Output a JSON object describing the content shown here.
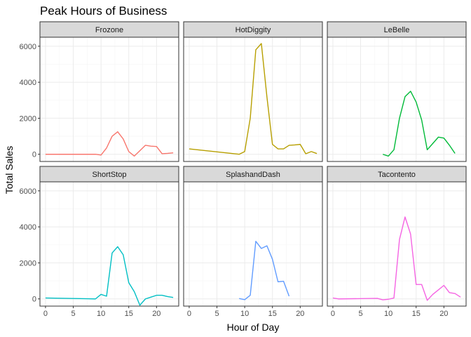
{
  "chart_data": {
    "type": "line",
    "title": "Peak Hours of Business",
    "xlabel": "Hour of Day",
    "ylabel": "Total Sales",
    "xlim": [
      -1,
      24
    ],
    "ylim": [
      -400,
      6500
    ],
    "x_ticks": [
      0,
      5,
      10,
      15,
      20
    ],
    "y_ticks": [
      0,
      2000,
      4000,
      6000
    ],
    "x_tick_labels": [
      "0",
      "5",
      "10",
      "15",
      "20"
    ],
    "y_tick_labels": [
      "0",
      "2000",
      "4000",
      "6000"
    ],
    "grid": true,
    "legend": "none",
    "facets": [
      {
        "name": "Frozone",
        "color": "#F8766D",
        "points": [
          [
            0,
            0
          ],
          [
            9,
            0
          ],
          [
            10,
            -40
          ],
          [
            11,
            350
          ],
          [
            12,
            1000
          ],
          [
            13,
            1250
          ],
          [
            14,
            850
          ],
          [
            15,
            150
          ],
          [
            16,
            -100
          ],
          [
            17,
            200
          ],
          [
            18,
            500
          ],
          [
            19,
            450
          ],
          [
            20,
            430
          ],
          [
            21,
            30
          ],
          [
            22,
            50
          ],
          [
            23,
            80
          ]
        ]
      },
      {
        "name": "HotDiggity",
        "color": "#B79F00",
        "points": [
          [
            0,
            300
          ],
          [
            9,
            0
          ],
          [
            10,
            150
          ],
          [
            11,
            2000
          ],
          [
            12,
            5800
          ],
          [
            13,
            6150
          ],
          [
            14,
            3200
          ],
          [
            15,
            550
          ],
          [
            16,
            300
          ],
          [
            17,
            300
          ],
          [
            18,
            500
          ],
          [
            19,
            520
          ],
          [
            20,
            550
          ],
          [
            21,
            30
          ],
          [
            22,
            150
          ],
          [
            23,
            40
          ]
        ]
      },
      {
        "name": "LeBelle",
        "color": "#00BA38",
        "points": [
          [
            9,
            0
          ],
          [
            10,
            -100
          ],
          [
            11,
            250
          ],
          [
            12,
            2000
          ],
          [
            13,
            3200
          ],
          [
            14,
            3500
          ],
          [
            15,
            2900
          ],
          [
            16,
            1900
          ],
          [
            17,
            250
          ],
          [
            18,
            600
          ],
          [
            19,
            950
          ],
          [
            20,
            900
          ],
          [
            21,
            500
          ],
          [
            22,
            50
          ]
        ]
      },
      {
        "name": "ShortStop",
        "color": "#00BFC4",
        "points": [
          [
            0,
            50
          ],
          [
            9,
            0
          ],
          [
            10,
            250
          ],
          [
            11,
            150
          ],
          [
            12,
            2550
          ],
          [
            13,
            2900
          ],
          [
            14,
            2450
          ],
          [
            15,
            900
          ],
          [
            16,
            400
          ],
          [
            17,
            -350
          ],
          [
            18,
            0
          ],
          [
            19,
            100
          ],
          [
            20,
            200
          ],
          [
            21,
            200
          ],
          [
            22,
            130
          ],
          [
            23,
            80
          ]
        ]
      },
      {
        "name": "SplashandDash",
        "color": "#619CFF",
        "points": [
          [
            9,
            20
          ],
          [
            10,
            -40
          ],
          [
            11,
            200
          ],
          [
            12,
            3200
          ],
          [
            13,
            2800
          ],
          [
            14,
            2950
          ],
          [
            15,
            2200
          ],
          [
            16,
            950
          ],
          [
            17,
            980
          ],
          [
            18,
            150
          ]
        ]
      },
      {
        "name": "Tacontento",
        "color": "#F564E3",
        "points": [
          [
            0,
            50
          ],
          [
            1,
            0
          ],
          [
            8,
            30
          ],
          [
            9,
            -50
          ],
          [
            10,
            -20
          ],
          [
            11,
            50
          ],
          [
            12,
            3300
          ],
          [
            13,
            4550
          ],
          [
            14,
            3600
          ],
          [
            15,
            800
          ],
          [
            16,
            800
          ],
          [
            17,
            -80
          ],
          [
            18,
            250
          ],
          [
            19,
            500
          ],
          [
            20,
            750
          ],
          [
            21,
            350
          ],
          [
            22,
            300
          ],
          [
            23,
            100
          ]
        ]
      }
    ]
  }
}
